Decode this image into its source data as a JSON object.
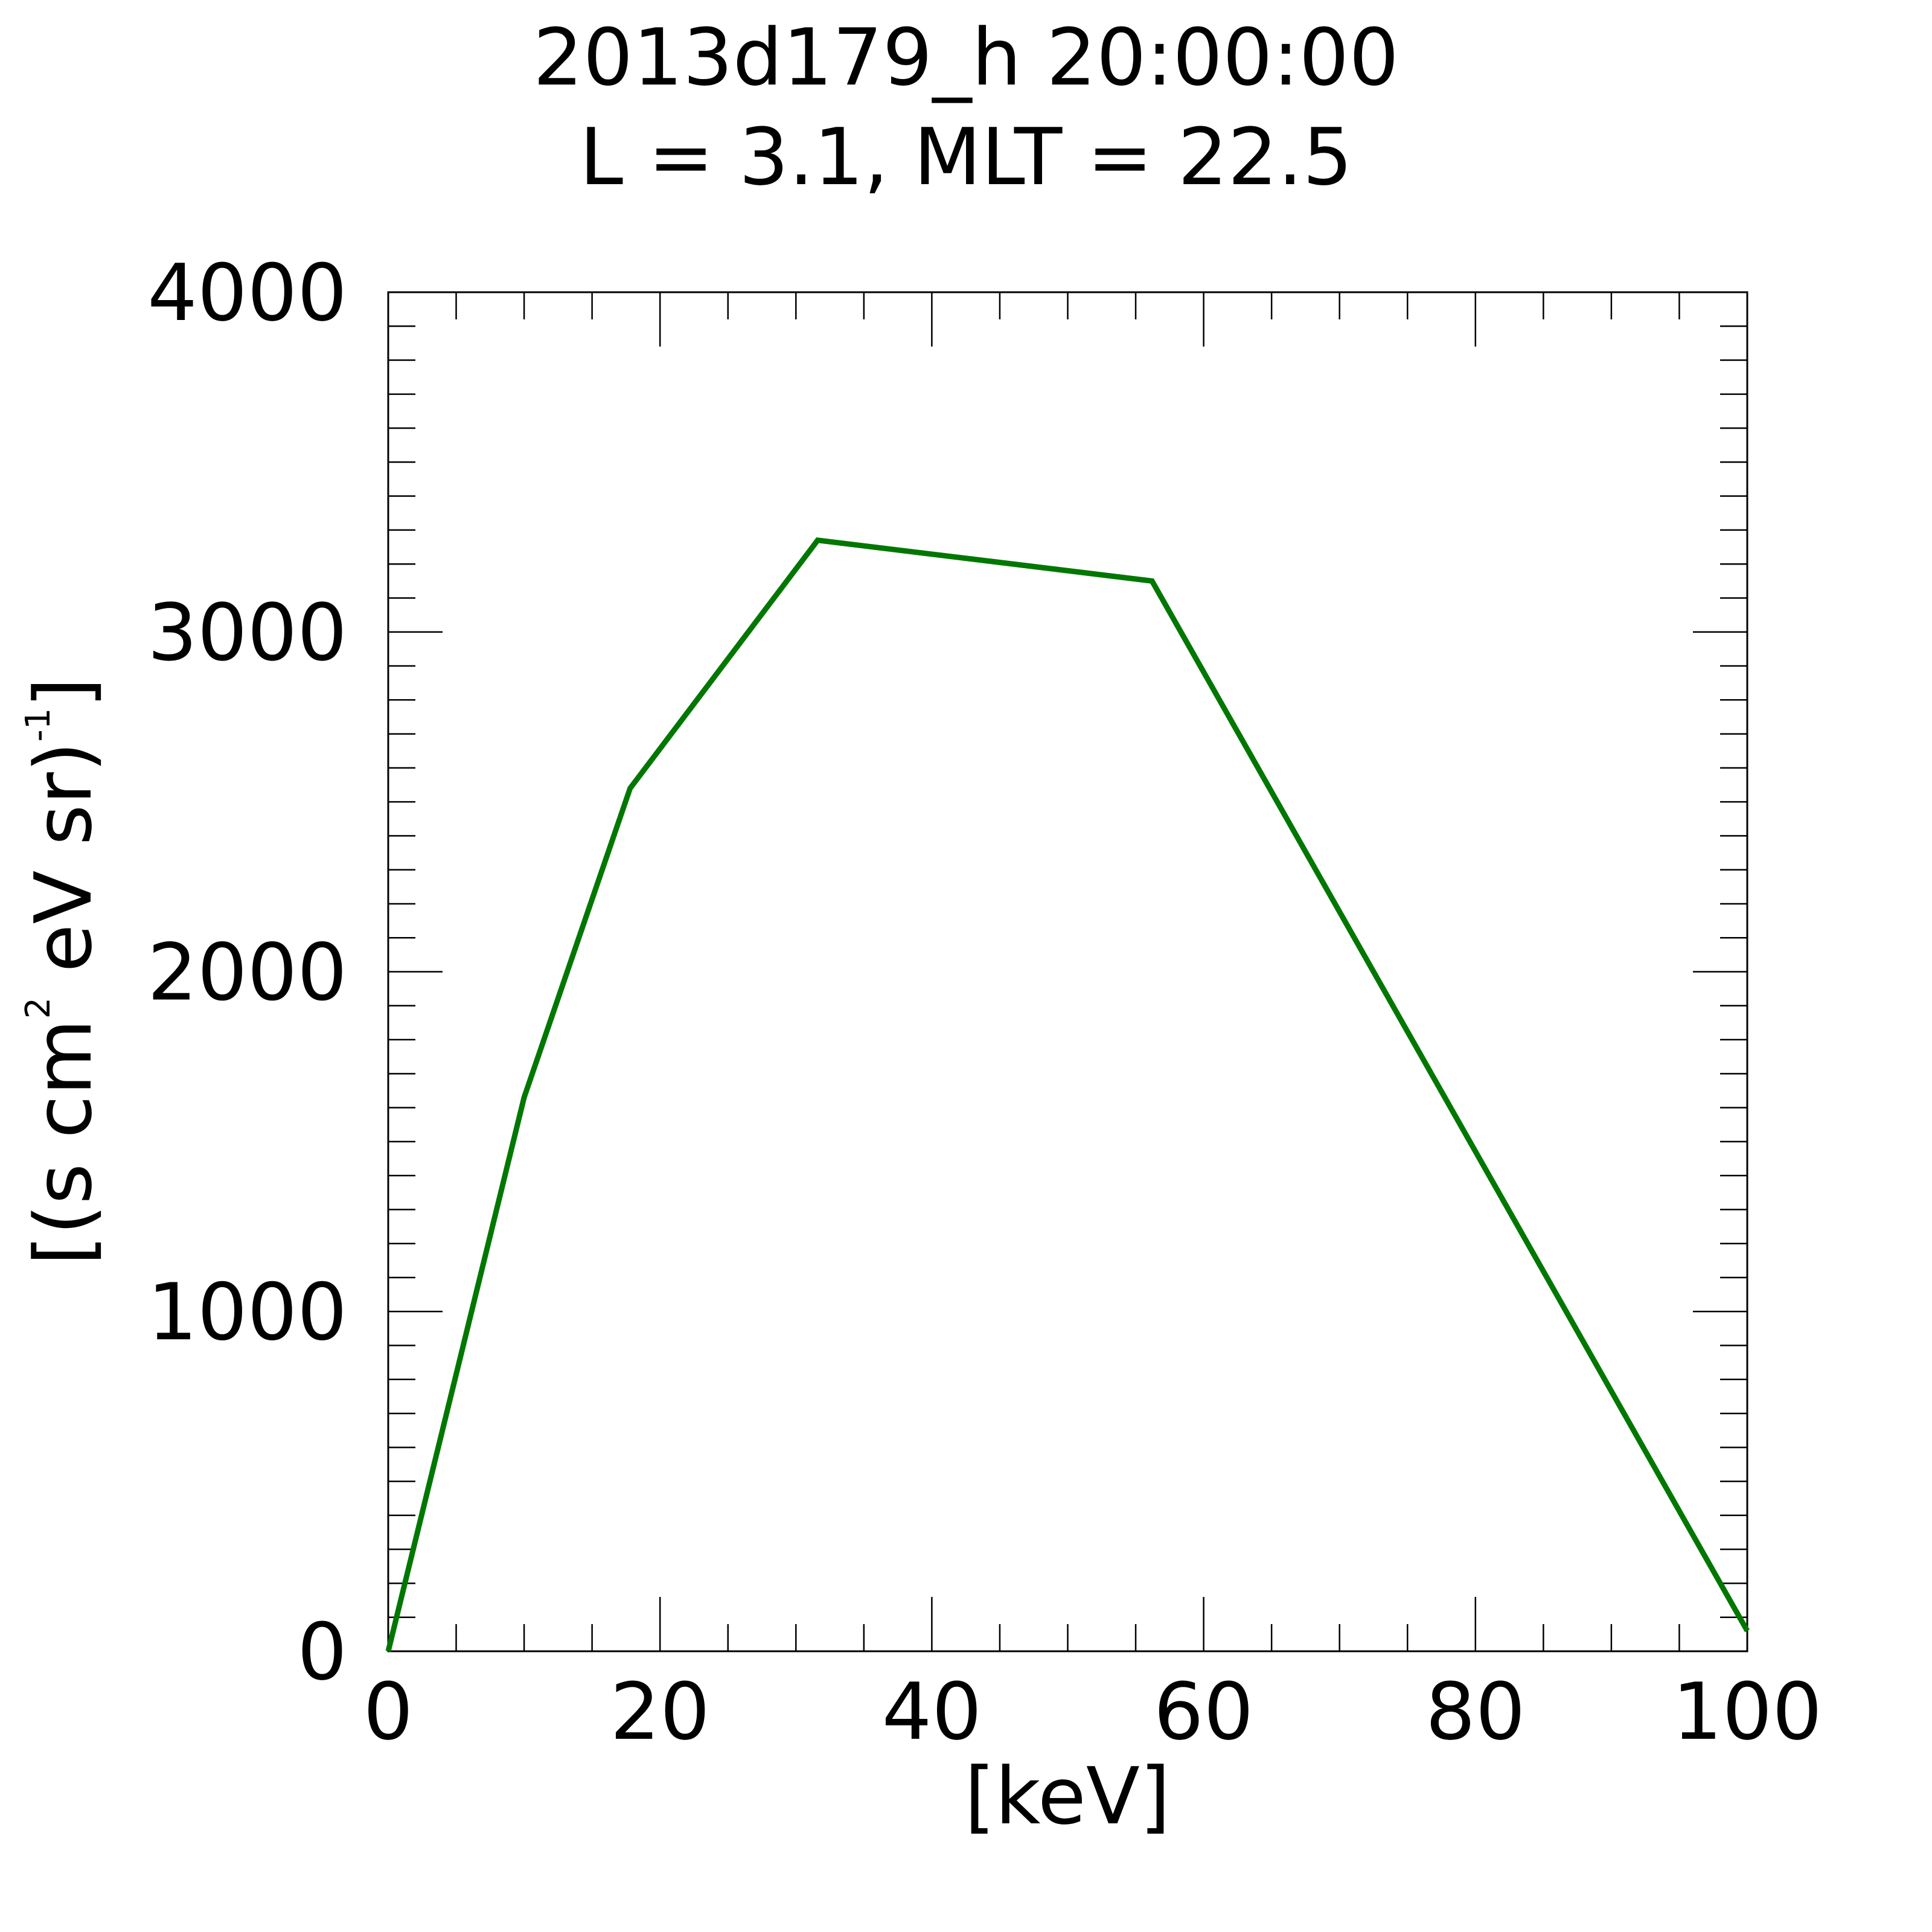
{
  "chart_data": {
    "type": "line",
    "title": "2013d179_h  20:00:00",
    "subtitle": "L = 3.1, MLT = 22.5",
    "xlabel": "[keV]",
    "ylabel": {
      "p1": "[(s cm",
      "sup1": "2",
      "p2": " eV sr)",
      "sup2": "-1",
      "p3": "]"
    },
    "xlim": [
      0,
      100
    ],
    "ylim": [
      0,
      4000
    ],
    "xticks": [
      0,
      20,
      40,
      60,
      80,
      100
    ],
    "yticks": [
      0,
      1000,
      2000,
      3000,
      4000
    ],
    "x_minor_step": 5,
    "y_minor_step": 100,
    "grid": false,
    "line_color": "#007700",
    "series": [
      {
        "x": [
          0,
          10,
          17.8,
          31.6,
          56.2,
          100
        ],
        "y": [
          0,
          1630,
          2540,
          3270,
          3150,
          60
        ]
      }
    ]
  }
}
